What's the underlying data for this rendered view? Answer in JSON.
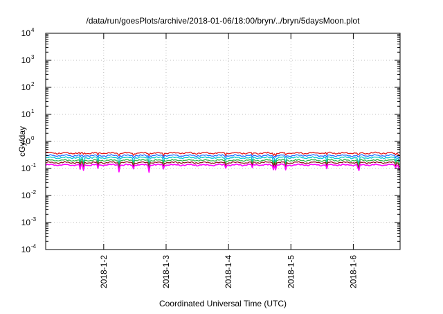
{
  "chart_data": {
    "type": "line",
    "title": "/data/run/goesPlots/archive/2018-01-06/18:00/bryn/../bryn/5daysMoon.plot",
    "xlabel": "Coordinated Universal Time (UTC)",
    "ylabel": "cGy/day",
    "y_scale": "log",
    "ylim": [
      0.0001,
      10000
    ],
    "y_ticks": [
      {
        "mantissa": "10",
        "exp": "-4",
        "value": 0.0001
      },
      {
        "mantissa": "10",
        "exp": "-3",
        "value": 0.001
      },
      {
        "mantissa": "10",
        "exp": "-2",
        "value": 0.01
      },
      {
        "mantissa": "10",
        "exp": "-1",
        "value": 0.1
      },
      {
        "mantissa": "10",
        "exp": "0",
        "value": 1
      },
      {
        "mantissa": "10",
        "exp": "1",
        "value": 10
      },
      {
        "mantissa": "10",
        "exp": "2",
        "value": 100
      },
      {
        "mantissa": "10",
        "exp": "3",
        "value": 1000
      },
      {
        "mantissa": "10",
        "exp": "4",
        "value": 10000
      }
    ],
    "x_ticks": [
      "2018-1-2",
      "2018-1-3",
      "2018-1-4",
      "2018-1-5",
      "2018-1-6"
    ],
    "xlim_days": [
      1.07,
      6.75
    ],
    "grid": true,
    "colors": {
      "red": "#e41a1c",
      "blue": "#1f6fff",
      "cyan": "#00c8d2",
      "green": "#2fb84a",
      "darkred": "#8b1a1a",
      "magenta": "#ff00ff",
      "grid": "#aaaaaa"
    },
    "series": [
      {
        "color": "red",
        "level": 0.37
      },
      {
        "color": "blue",
        "level": 0.3
      },
      {
        "color": "cyan",
        "level": 0.25
      },
      {
        "color": "green",
        "level": 0.2
      },
      {
        "color": "darkred",
        "level": 0.165
      },
      {
        "color": "magenta",
        "level": 0.135
      }
    ]
  }
}
